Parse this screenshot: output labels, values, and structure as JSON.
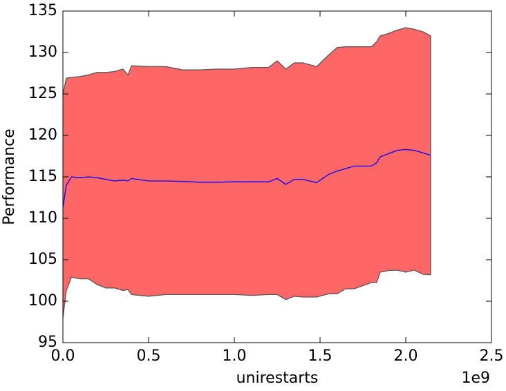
{
  "chart_data": {
    "type": "line",
    "xlabel": "unirestarts",
    "ylabel": "Performance",
    "x_offset_text": "1e9",
    "x": [
      0,
      0.02,
      0.05,
      0.1,
      0.15,
      0.2,
      0.25,
      0.3,
      0.35,
      0.38,
      0.4,
      0.5,
      0.6,
      0.7,
      0.8,
      0.9,
      1.0,
      1.1,
      1.2,
      1.25,
      1.3,
      1.35,
      1.4,
      1.48,
      1.55,
      1.6,
      1.65,
      1.7,
      1.8,
      1.83,
      1.85,
      1.9,
      1.95,
      2.0,
      2.05,
      2.1,
      2.145
    ],
    "series": [
      {
        "color": "#0000ff",
        "values": [
          111.3,
          114,
          115,
          114.9,
          115,
          114.9,
          114.7,
          114.5,
          114.6,
          114.5,
          114.8,
          114.5,
          114.5,
          114.45,
          114.35,
          114.35,
          114.4,
          114.4,
          114.4,
          114.8,
          114.1,
          114.7,
          114.7,
          114.3,
          115.3,
          115.7,
          116,
          116.3,
          116.3,
          116.7,
          117.4,
          117.8,
          118.2,
          118.3,
          118.2,
          117.9,
          117.6
        ]
      }
    ],
    "band": {
      "color": "#ff6666",
      "edge_color": "#555555",
      "upper": [
        125,
        126.9,
        127,
        127.1,
        127.3,
        127.6,
        127.6,
        127.7,
        128,
        127.3,
        128.4,
        128.3,
        128.3,
        127.9,
        127.9,
        128,
        128,
        128.2,
        128.2,
        129,
        128,
        128.75,
        128.75,
        128.3,
        129.7,
        130.6,
        130.7,
        130.7,
        130.7,
        131.3,
        132,
        132.3,
        132.7,
        133,
        132.8,
        132.5,
        132
      ],
      "lower": [
        98,
        101.3,
        102.9,
        102.7,
        102.7,
        102,
        101.6,
        101.6,
        101.3,
        101.4,
        100.8,
        100.6,
        100.8,
        100.8,
        100.8,
        100.8,
        100.8,
        100.7,
        100.8,
        100.8,
        100.2,
        100.6,
        100.5,
        100.5,
        100.9,
        100.9,
        101.5,
        101.5,
        102.25,
        102.25,
        103.5,
        103.7,
        103.75,
        103.5,
        103.75,
        103.25,
        103.2
      ]
    },
    "xlim": [
      0,
      2.5
    ],
    "xticks": [
      {
        "value": 0,
        "label": "0.0"
      },
      0.5,
      {
        "value": 1,
        "label": "1.0"
      },
      1.5,
      {
        "value": 2,
        "label": "2.0"
      },
      2.5
    ],
    "ylim": [
      95,
      135
    ],
    "yticks": [
      95,
      100,
      105,
      110,
      115,
      120,
      125,
      130,
      135
    ],
    "grid": false
  }
}
